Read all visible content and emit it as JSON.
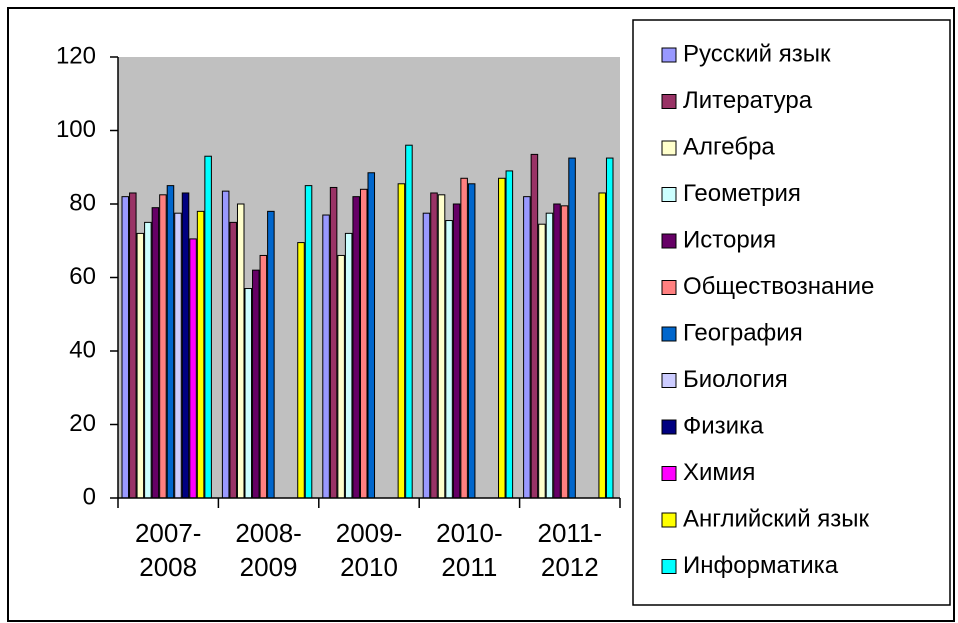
{
  "chart_data": {
    "type": "bar",
    "categories": [
      "2007-2008",
      "2008-2009",
      "2009-2010",
      "2010-2011",
      "2011-2012"
    ],
    "series": [
      {
        "name": "Русский язык",
        "color": "#9999ff",
        "values": [
          82,
          83.5,
          77,
          77.5,
          82
        ]
      },
      {
        "name": "Литература",
        "color": "#993366",
        "values": [
          83,
          75,
          84.5,
          83,
          93.5
        ]
      },
      {
        "name": "Алгебра",
        "color": "#ffffcc",
        "values": [
          72,
          80,
          66,
          82.5,
          74.5
        ]
      },
      {
        "name": "Геометрия",
        "color": "#ccffff",
        "values": [
          75,
          57,
          72,
          75.5,
          77.5
        ]
      },
      {
        "name": "История",
        "color": "#660066",
        "values": [
          79,
          62,
          82,
          80,
          80
        ]
      },
      {
        "name": "Обществознание",
        "color": "#ff8080",
        "values": [
          82.5,
          66,
          84,
          87,
          79.5
        ]
      },
      {
        "name": "География",
        "color": "#0066cc",
        "values": [
          85,
          78,
          88.5,
          85.5,
          92.5
        ]
      },
      {
        "name": "Биология",
        "color": "#ccccff",
        "values": [
          77.5,
          null,
          null,
          null,
          null
        ]
      },
      {
        "name": "Физика",
        "color": "#000080",
        "values": [
          83,
          null,
          null,
          null,
          null
        ]
      },
      {
        "name": "Химия",
        "color": "#ff00ff",
        "values": [
          70.5,
          null,
          null,
          null,
          null
        ]
      },
      {
        "name": "Английский язык",
        "color": "#ffff00",
        "values": [
          78,
          69.5,
          85.5,
          87,
          83
        ]
      },
      {
        "name": "Информатика",
        "color": "#00ffff",
        "values": [
          93,
          85,
          96,
          89,
          92.5
        ]
      }
    ],
    "ylim": [
      0,
      120
    ],
    "yticks": [
      0,
      20,
      40,
      60,
      80,
      100,
      120
    ],
    "grid": false,
    "plot_background": "#c0c0c0",
    "legend": "right"
  }
}
